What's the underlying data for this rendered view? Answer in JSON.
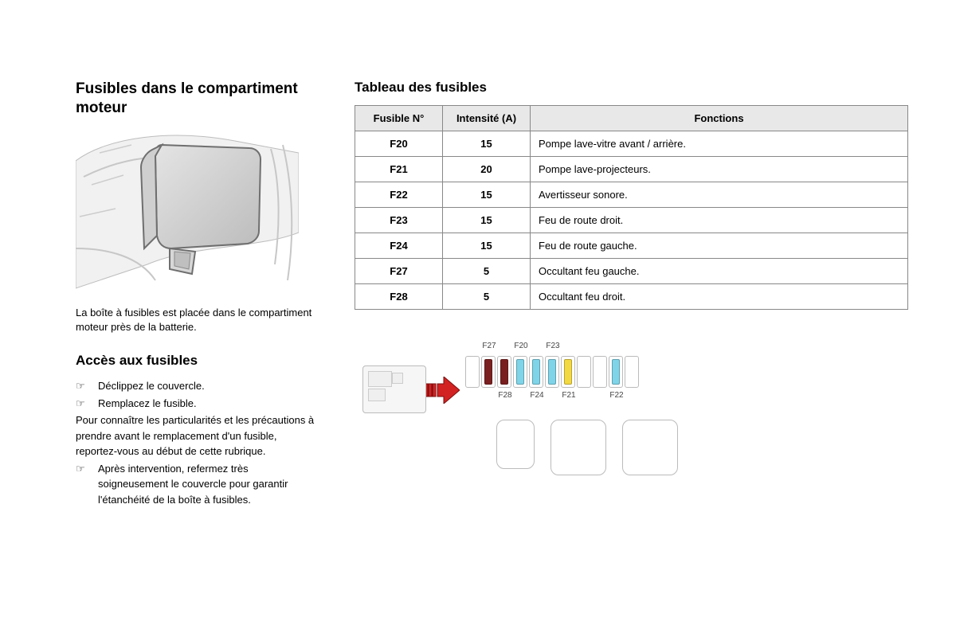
{
  "left": {
    "title": "Fusibles dans le compartiment moteur",
    "caption": "La boîte à fusibles est placée dans le compartiment moteur près de la batterie.",
    "access_title": "Accès aux fusibles",
    "step1": "Déclippez le couvercle.",
    "step2": "Remplacez le fusible.",
    "para": "Pour connaître les particularités et les précautions à prendre avant le remplacement d'un fusible, reportez-vous au début de cette rubrique.",
    "step3": "Après intervention, refermez très soigneusement le couvercle pour garantir l'étanchéité de la boîte à fusibles."
  },
  "table": {
    "title": "Tableau des fusibles",
    "columns": [
      "Fusible N°",
      "Intensité (A)",
      "Fonctions"
    ],
    "header_bg": "#e8e8e8",
    "border_color": "#888888",
    "rows": [
      {
        "id": "F20",
        "amp": "15",
        "fn": "Pompe lave-vitre avant / arrière."
      },
      {
        "id": "F21",
        "amp": "20",
        "fn": "Pompe lave-projecteurs."
      },
      {
        "id": "F22",
        "amp": "15",
        "fn": "Avertisseur sonore."
      },
      {
        "id": "F23",
        "amp": "15",
        "fn": "Feu de route droit."
      },
      {
        "id": "F24",
        "amp": "15",
        "fn": "Feu de route gauche."
      },
      {
        "id": "F27",
        "amp": "5",
        "fn": "Occultant feu gauche."
      },
      {
        "id": "F28",
        "amp": "5",
        "fn": "Occultant feu droit."
      }
    ]
  },
  "diagram": {
    "arrow_fill": "#d22222",
    "arrow_stroke": "#7a0f0f",
    "slot_border": "#bbbbbb",
    "empty_color": "#ffffff",
    "labels_top": [
      "",
      "F27",
      "",
      "F20",
      "",
      "F23",
      "",
      "",
      "",
      "",
      ""
    ],
    "labels_bot": [
      "",
      "",
      "F28",
      "",
      "F24",
      "",
      "F21",
      "",
      "",
      "F22",
      ""
    ],
    "slots": [
      {
        "color": "#ffffff",
        "filled": false
      },
      {
        "color": "#7a1f1f",
        "filled": true
      },
      {
        "color": "#7a1f1f",
        "filled": true
      },
      {
        "color": "#7fd4e8",
        "filled": true
      },
      {
        "color": "#7fd4e8",
        "filled": true
      },
      {
        "color": "#7fd4e8",
        "filled": true
      },
      {
        "color": "#f2d941",
        "filled": true
      },
      {
        "color": "#ffffff",
        "filled": false
      },
      {
        "color": "#ffffff",
        "filled": false
      },
      {
        "color": "#7fd4e8",
        "filled": true
      },
      {
        "color": "#ffffff",
        "filled": false
      }
    ],
    "relays": [
      {
        "size": "small"
      },
      {
        "size": "big"
      },
      {
        "size": "big"
      }
    ]
  },
  "style": {
    "body_font": "Arial",
    "heading_fontsize_pt": 19,
    "sub_heading_fontsize_pt": 17,
    "body_fontsize_pt": 13,
    "text_color": "#000000",
    "page_bg": "#ffffff"
  }
}
